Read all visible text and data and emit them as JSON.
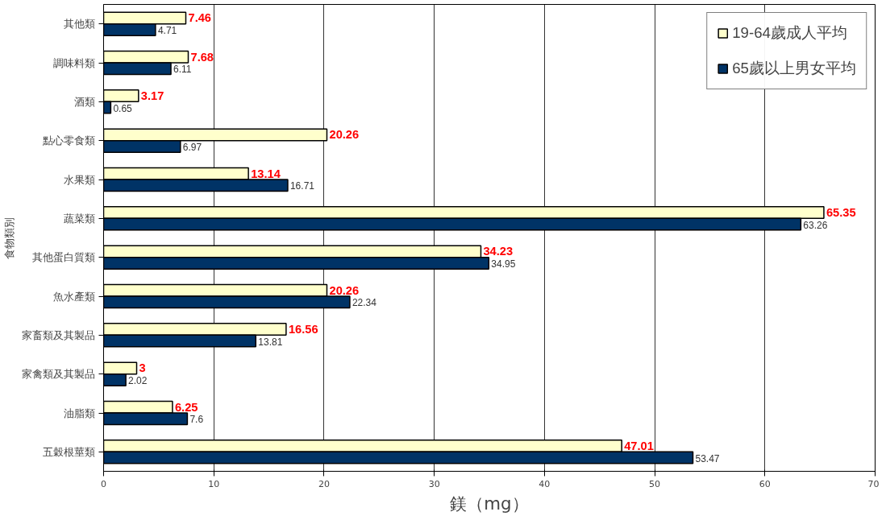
{
  "chart_data": {
    "type": "bar",
    "orientation": "horizontal",
    "xlabel": "鎂（mg）",
    "ylabel": "食物類別",
    "categories": [
      "其他類",
      "調味料類",
      "酒類",
      "點心零食類",
      "水果類",
      "蔬菜類",
      "其他蛋白質類",
      "魚水產類",
      "家畜類及其製品",
      "家禽類及其製品",
      "油脂類",
      "五穀根莖類"
    ],
    "series": [
      {
        "name": "19-64歲成人平均",
        "color": "#ffffcc",
        "values": [
          7.46,
          7.68,
          3.17,
          20.26,
          13.14,
          65.35,
          34.23,
          20.26,
          16.56,
          3,
          6.25,
          47.01
        ]
      },
      {
        "name": "65歲以上男女平均",
        "color": "#003366",
        "values": [
          4.71,
          6.11,
          0.65,
          6.97,
          16.71,
          63.26,
          34.95,
          22.34,
          13.81,
          2.02,
          7.6,
          53.47
        ]
      }
    ],
    "xlim": [
      0,
      70
    ],
    "xticks": [
      0,
      10,
      20,
      30,
      40,
      50,
      60,
      70
    ],
    "grid": "x",
    "legend": "top right",
    "data_labels": true
  }
}
